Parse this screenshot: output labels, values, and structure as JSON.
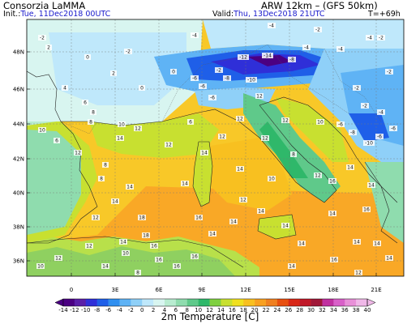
{
  "header": {
    "brand": "Consorzia LaMMA",
    "init_label": "Init.:",
    "init_value": "Tue, 11Dec2018 00UTC",
    "model": "ARW 12km  –  (GFS 50km)",
    "valid_label": "Valid:",
    "valid_value": "Thu, 13Dec2018 21UTC",
    "lead": "T=+69h"
  },
  "map": {
    "lat_ticks": [
      "48N",
      "46N",
      "44N",
      "42N",
      "40N",
      "38N",
      "36N"
    ],
    "lon_ticks": [
      "0",
      "3E",
      "6E",
      "9E",
      "12E",
      "15E",
      "18E",
      "21E"
    ],
    "value_labels": [
      {
        "t": "-2"
      },
      {
        "t": "0"
      },
      {
        "t": "-2"
      },
      {
        "t": "2"
      },
      {
        "t": "-4"
      },
      {
        "t": "-4"
      },
      {
        "t": "-2"
      },
      {
        "t": "-4"
      },
      {
        "t": "0"
      },
      {
        "t": "-2"
      },
      {
        "t": "-6"
      },
      {
        "t": "-12"
      },
      {
        "t": "-14"
      },
      {
        "t": "-8"
      },
      {
        "t": "-4"
      },
      {
        "t": "-4"
      },
      {
        "t": "2"
      },
      {
        "t": "-6"
      },
      {
        "t": "-8"
      },
      {
        "t": "-10"
      },
      {
        "t": "-6"
      },
      {
        "t": "-2"
      },
      {
        "t": "-2"
      },
      {
        "t": "4"
      },
      {
        "t": "6"
      },
      {
        "t": "8"
      },
      {
        "t": "0"
      },
      {
        "t": "-2"
      },
      {
        "t": "-6"
      },
      {
        "t": "-4"
      },
      {
        "t": "-8"
      },
      {
        "t": "-10"
      },
      {
        "t": "10"
      },
      {
        "t": "10"
      },
      {
        "t": "8"
      },
      {
        "t": "-6"
      },
      {
        "t": "-6"
      },
      {
        "t": "6"
      },
      {
        "t": "12"
      },
      {
        "t": "8"
      },
      {
        "t": "14"
      },
      {
        "t": "12"
      },
      {
        "t": "12"
      },
      {
        "t": "12"
      },
      {
        "t": "10"
      },
      {
        "t": "12"
      },
      {
        "t": "8"
      },
      {
        "t": "14"
      },
      {
        "t": "14"
      },
      {
        "t": "14"
      },
      {
        "t": "12"
      },
      {
        "t": "14"
      },
      {
        "t": "12"
      },
      {
        "t": "10"
      },
      {
        "t": "8"
      },
      {
        "t": "12"
      },
      {
        "t": "14"
      },
      {
        "t": "14"
      },
      {
        "t": "14"
      },
      {
        "t": "12"
      },
      {
        "t": "14"
      },
      {
        "t": "14"
      },
      {
        "t": "14"
      },
      {
        "t": "14"
      },
      {
        "t": "14"
      },
      {
        "t": "12"
      },
      {
        "t": "14"
      },
      {
        "t": "16"
      },
      {
        "t": "16"
      },
      {
        "t": "14"
      },
      {
        "t": "16"
      },
      {
        "t": "14"
      },
      {
        "t": "14"
      },
      {
        "t": "12"
      },
      {
        "t": "14"
      },
      {
        "t": "16"
      },
      {
        "t": "16"
      },
      {
        "t": "16"
      },
      {
        "t": "18"
      },
      {
        "t": "18"
      },
      {
        "t": "12"
      },
      {
        "t": "10"
      },
      {
        "t": "14"
      },
      {
        "t": "12"
      },
      {
        "t": "10"
      },
      {
        "t": "8"
      },
      {
        "t": "16"
      },
      {
        "t": "14"
      },
      {
        "t": "12"
      },
      {
        "t": "6"
      },
      {
        "t": "16"
      },
      {
        "t": "-2"
      }
    ]
  },
  "colorbar": {
    "labels": [
      "-14",
      "-12",
      "-10",
      "-8",
      "-6",
      "-4",
      "-2",
      "0",
      "2",
      "4",
      "6",
      "8",
      "10",
      "12",
      "14",
      "16",
      "18",
      "20",
      "22",
      "24",
      "26",
      "28",
      "30",
      "32",
      "34",
      "36",
      "38",
      "40"
    ],
    "colors": [
      "#4b0082",
      "#5a1fa8",
      "#2f2fd8",
      "#1f5fe8",
      "#2f8ff0",
      "#5fb3f5",
      "#8fd0f8",
      "#bfe8fb",
      "#d8f5f0",
      "#b8ecd0",
      "#8fdcae",
      "#5fc98a",
      "#2fb86a",
      "#7fd040",
      "#c8e030",
      "#f0e020",
      "#f8c020",
      "#f8a020",
      "#f08020",
      "#e85010",
      "#d82818",
      "#c01828",
      "#a01838",
      "#c030a0",
      "#d860c8",
      "#e890d8",
      "#f0b8e8"
    ],
    "title": "2m Temperature [C]"
  }
}
